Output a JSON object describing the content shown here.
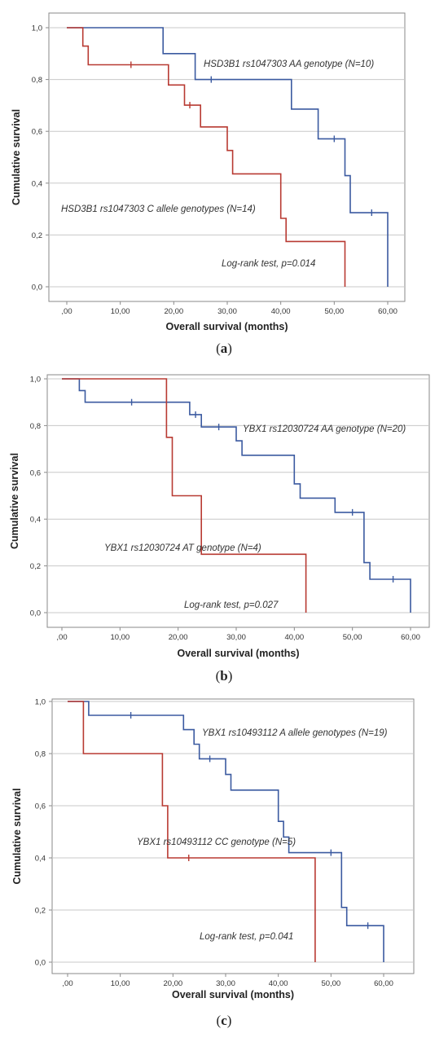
{
  "figure_captions": [
    "(a)",
    "(b)",
    "(c)"
  ],
  "chart_data": [
    {
      "type": "line",
      "caption_open": "(",
      "caption_letter": "a",
      "caption_close": ")",
      "xlabel": "Overall survival (months)",
      "ylabel": "Cumulative survival",
      "xlim": [
        0,
        60
      ],
      "ylim": [
        0,
        1
      ],
      "xticks": [
        ",00",
        "10,00",
        "20,00",
        "30,00",
        "40,00",
        "50,00",
        "60,00"
      ],
      "yticks": [
        "0,0",
        "0,2",
        "0,4",
        "0,6",
        "0,8",
        "1,0"
      ],
      "grid": "horizontal",
      "series": [
        {
          "name": "HSD3B1 rs1047303 AA genotype (N=10)",
          "color": "#3b5aa0",
          "x": [
            0,
            18,
            18,
            24,
            24,
            42,
            42,
            47,
            47,
            52,
            52,
            53,
            53,
            60,
            60
          ],
          "y": [
            1.0,
            1.0,
            0.9,
            0.9,
            0.8,
            0.8,
            0.686,
            0.686,
            0.571,
            0.571,
            0.429,
            0.429,
            0.286,
            0.286,
            0.0
          ],
          "censored": [
            [
              27,
              0.8
            ],
            [
              50,
              0.571
            ],
            [
              57,
              0.286
            ]
          ]
        },
        {
          "name": "HSD3B1 rs1047303 C allele genotypes (N=14)",
          "color": "#b83a32",
          "x": [
            0,
            3,
            3,
            4,
            4,
            19,
            19,
            22,
            22,
            25,
            25,
            30,
            30,
            31,
            31,
            40,
            40,
            41,
            41,
            52,
            52
          ],
          "y": [
            1.0,
            1.0,
            0.929,
            0.929,
            0.857,
            0.857,
            0.779,
            0.779,
            0.701,
            0.701,
            0.617,
            0.617,
            0.526,
            0.526,
            0.436,
            0.436,
            0.264,
            0.264,
            0.175,
            0.175,
            0.0
          ],
          "censored": [
            [
              12,
              0.857
            ],
            [
              23,
              0.701
            ]
          ]
        }
      ],
      "annotations": [
        "HSD3B1 rs1047303 AA genotype (N=10)",
        "HSD3B1 rs1047303 C allele genotypes (N=14)",
        "Log-rank test, p=0.014"
      ]
    },
    {
      "type": "line",
      "caption_open": "(",
      "caption_letter": "b",
      "caption_close": ")",
      "xlabel": "Overall survival (months)",
      "ylabel": "Cumulative survival",
      "xlim": [
        0,
        60
      ],
      "ylim": [
        0,
        1
      ],
      "xticks": [
        ",00",
        "10,00",
        "20,00",
        "30,00",
        "40,00",
        "50,00",
        "60,00"
      ],
      "yticks": [
        "0,0",
        "0,2",
        "0,4",
        "0,6",
        "0,8",
        "1,0"
      ],
      "grid": "horizontal",
      "series": [
        {
          "name": "YBX1 rs12030724 AA genotype (N=20)",
          "color": "#3b5aa0",
          "x": [
            0,
            3,
            3,
            4,
            4,
            22,
            22,
            24,
            24,
            30,
            30,
            31,
            31,
            40,
            40,
            41,
            41,
            47,
            47,
            52,
            52,
            53,
            53,
            60,
            60
          ],
          "y": [
            1.0,
            1.0,
            0.95,
            0.95,
            0.9,
            0.9,
            0.847,
            0.847,
            0.794,
            0.794,
            0.735,
            0.735,
            0.673,
            0.673,
            0.551,
            0.551,
            0.49,
            0.49,
            0.429,
            0.429,
            0.214,
            0.214,
            0.143,
            0.143,
            0.0
          ],
          "censored": [
            [
              12,
              0.9
            ],
            [
              23,
              0.847
            ],
            [
              27,
              0.794
            ],
            [
              50,
              0.429
            ],
            [
              57,
              0.143
            ]
          ]
        },
        {
          "name": "YBX1 rs12030724 AT genotype (N=4)",
          "color": "#b83a32",
          "x": [
            0,
            18,
            18,
            19,
            19,
            24,
            24,
            42,
            42
          ],
          "y": [
            1.0,
            1.0,
            0.75,
            0.75,
            0.5,
            0.5,
            0.25,
            0.25,
            0.0
          ],
          "censored": []
        }
      ],
      "annotations": [
        "YBX1 rs12030724 AA genotype (N=20)",
        "YBX1 rs12030724 AT genotype (N=4)",
        "Log-rank test, p=0.027"
      ]
    },
    {
      "type": "line",
      "caption_open": "(",
      "caption_letter": "c",
      "caption_close": ")",
      "xlabel": "Overall survival (months)",
      "ylabel": "Cumulative survival",
      "xlim": [
        0,
        60
      ],
      "ylim": [
        0,
        1
      ],
      "xticks": [
        ",00",
        "10,00",
        "20,00",
        "30,00",
        "40,00",
        "50,00",
        "60,00"
      ],
      "yticks": [
        "0,0",
        "0,2",
        "0,4",
        "0,6",
        "0,8",
        "1,0"
      ],
      "grid": "horizontal",
      "series": [
        {
          "name": "YBX1 rs10493112 A allele genotypes (N=19)",
          "color": "#3b5aa0",
          "x": [
            0,
            4,
            4,
            22,
            22,
            24,
            24,
            25,
            25,
            30,
            30,
            31,
            31,
            40,
            40,
            41,
            41,
            42,
            42,
            52,
            52,
            53,
            53,
            60,
            60
          ],
          "y": [
            1.0,
            1.0,
            0.947,
            0.947,
            0.892,
            0.892,
            0.836,
            0.836,
            0.78,
            0.78,
            0.72,
            0.72,
            0.66,
            0.66,
            0.54,
            0.54,
            0.48,
            0.48,
            0.42,
            0.42,
            0.21,
            0.21,
            0.14,
            0.14,
            0.0
          ],
          "censored": [
            [
              12,
              0.947
            ],
            [
              27,
              0.78
            ],
            [
              50,
              0.42
            ],
            [
              57,
              0.14
            ]
          ]
        },
        {
          "name": "YBX1 rs10493112 CC genotype (N=5)",
          "color": "#b83a32",
          "x": [
            0,
            3,
            3,
            18,
            18,
            19,
            19,
            47,
            47
          ],
          "y": [
            1.0,
            1.0,
            0.8,
            0.8,
            0.6,
            0.6,
            0.4,
            0.4,
            0.0
          ],
          "censored": [
            [
              23,
              0.4
            ]
          ]
        }
      ],
      "annotations": [
        "YBX1 rs10493112 A allele genotypes (N=19)",
        "YBX1 rs10493112 CC genotype (N=5)",
        "Log-rank test, p=0.041"
      ]
    }
  ]
}
